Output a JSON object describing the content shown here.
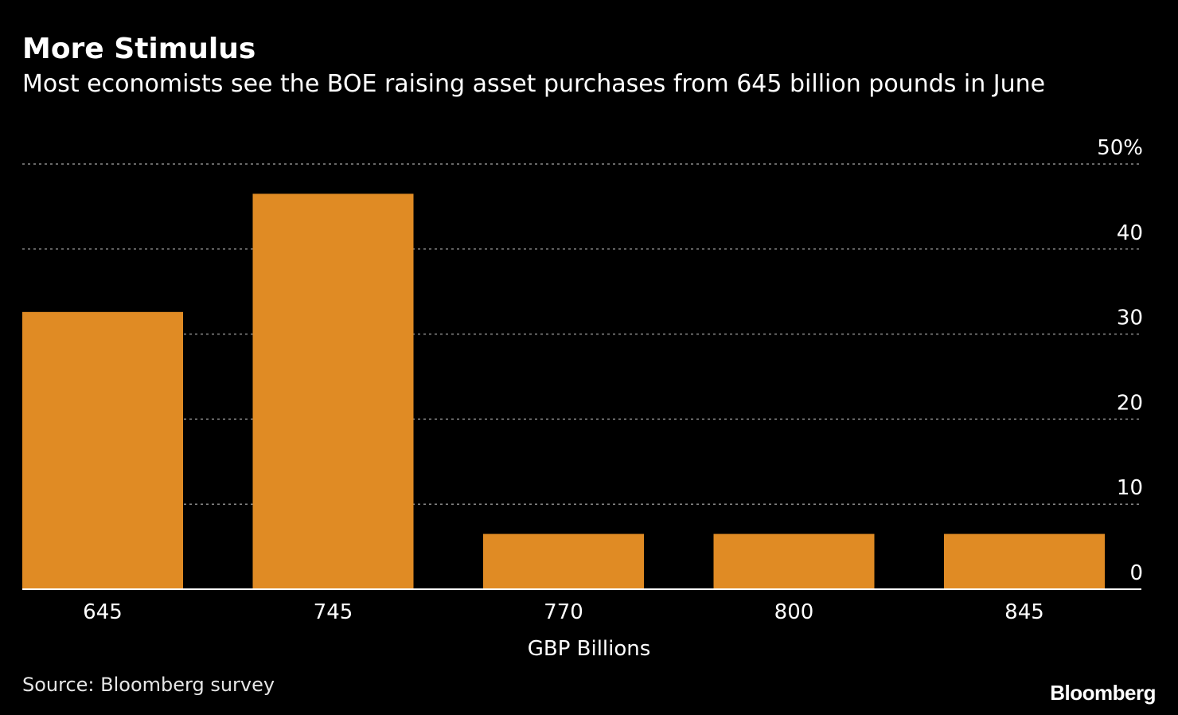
{
  "header": {
    "title": "More Stimulus",
    "subtitle": "Most economists see the BOE raising asset purchases from 645 billion pounds in June"
  },
  "footer": {
    "source": "Source: Bloomberg survey",
    "brand": "Bloomberg"
  },
  "colors": {
    "background": "#000000",
    "bar": "#e08b24",
    "grid": "#8a8a8a",
    "text": "#ffffff"
  },
  "chart_data": {
    "type": "bar",
    "categories": [
      "645",
      "745",
      "770",
      "800",
      "845"
    ],
    "values": [
      32.6,
      46.5,
      6.5,
      6.5,
      6.5
    ],
    "xlabel": "GBP Billions",
    "ylabel": "",
    "ylim": [
      0,
      50
    ],
    "yticks": [
      0,
      10,
      20,
      30,
      40,
      50
    ],
    "ytick_labels": [
      "0",
      "10",
      "20",
      "30",
      "40",
      "50%"
    ],
    "y_axis_side": "right",
    "grid": true,
    "grid_style": "dotted",
    "legend": "none"
  }
}
